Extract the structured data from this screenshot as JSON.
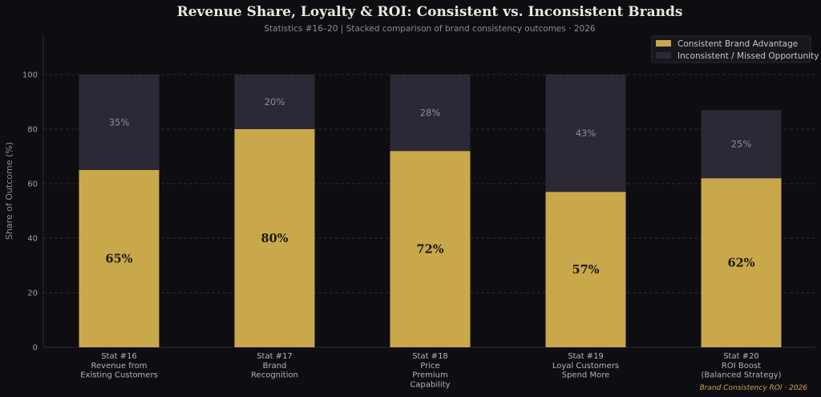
{
  "colors": {
    "background": "#0e0d11",
    "consistent": "#c9a84c",
    "inconsistent": "#2d2836",
    "grid": "#3a3840",
    "footer": "#c9a84c"
  },
  "chart_data": {
    "type": "bar",
    "stacked": true,
    "title": "Revenue Share, Loyalty & ROI: Consistent vs. Inconsistent Brands",
    "subtitle": "Statistics #16–20 | Stacked comparison of brand consistency outcomes · 2026",
    "ylabel": "Share of Outcome (%)",
    "xlabel": "",
    "ylim": [
      0,
      115
    ],
    "yticks": [
      0,
      20,
      40,
      60,
      80,
      100
    ],
    "grid": true,
    "legend_position": "top-right",
    "categories": [
      [
        "Stat #16",
        "Revenue from",
        "Existing Customers"
      ],
      [
        "Stat #17",
        "Brand",
        "Recognition"
      ],
      [
        "Stat #18",
        "Price",
        "Premium",
        "Capability"
      ],
      [
        "Stat #19",
        "Loyal Customers",
        "Spend More"
      ],
      [
        "Stat #20",
        "ROI Boost",
        "(Balanced Strategy)"
      ]
    ],
    "series": [
      {
        "name": "Consistent Brand Advantage",
        "values": [
          65,
          80,
          72,
          57,
          62
        ],
        "labels": [
          "65%",
          "80%",
          "72%",
          "57%",
          "62%"
        ]
      },
      {
        "name": "Inconsistent / Missed Opportunity",
        "values": [
          35,
          20,
          28,
          43,
          25
        ],
        "labels": [
          "35%",
          "20%",
          "28%",
          "43%",
          "25%"
        ]
      }
    ]
  },
  "footer": "Brand Consistency ROI · 2026"
}
